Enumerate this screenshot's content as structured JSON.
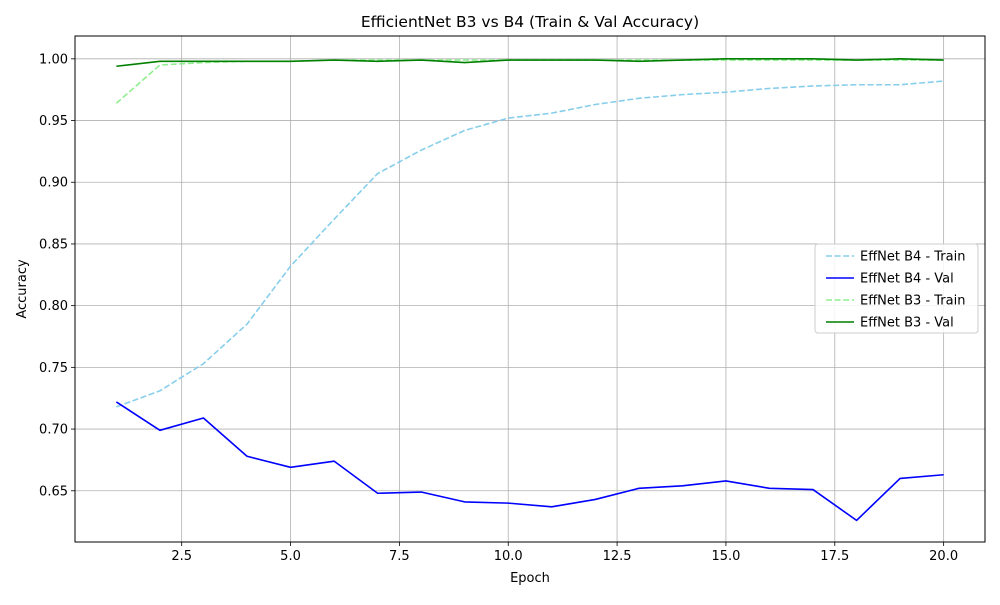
{
  "chart_data": {
    "type": "line",
    "title": "EfficientNet B3 vs B4 (Train & Val Accuracy)",
    "xlabel": "Epoch",
    "ylabel": "Accuracy",
    "xlim": [
      0.05,
      20.95
    ],
    "ylim": [
      0.6085,
      1.0185
    ],
    "xticks": [
      2.5,
      5.0,
      7.5,
      10.0,
      12.5,
      15.0,
      17.5,
      20.0
    ],
    "xtick_labels": [
      "2.5",
      "5.0",
      "7.5",
      "10.0",
      "12.5",
      "15.0",
      "17.5",
      "20.0"
    ],
    "yticks": [
      0.65,
      0.7,
      0.75,
      0.8,
      0.85,
      0.9,
      0.95,
      1.0
    ],
    "ytick_labels": [
      "0.65",
      "0.70",
      "0.75",
      "0.80",
      "0.85",
      "0.90",
      "0.95",
      "1.00"
    ],
    "grid": true,
    "legend_position": "center-right",
    "x": [
      1,
      2,
      3,
      4,
      5,
      6,
      7,
      8,
      9,
      10,
      11,
      12,
      13,
      14,
      15,
      16,
      17,
      18,
      19,
      20
    ],
    "series": [
      {
        "name": "EffNet B4 - Train",
        "color": "#87CEEB",
        "dashed": true,
        "values": [
          0.718,
          0.731,
          0.753,
          0.785,
          0.832,
          0.87,
          0.907,
          0.926,
          0.942,
          0.952,
          0.956,
          0.963,
          0.968,
          0.971,
          0.973,
          0.976,
          0.978,
          0.979,
          0.979,
          0.982
        ]
      },
      {
        "name": "EffNet B4 - Val",
        "color": "#0000FF",
        "dashed": false,
        "values": [
          0.722,
          0.699,
          0.709,
          0.678,
          0.669,
          0.674,
          0.648,
          0.649,
          0.641,
          0.64,
          0.637,
          0.643,
          0.652,
          0.654,
          0.658,
          0.652,
          0.651,
          0.626,
          0.66,
          0.663
        ]
      },
      {
        "name": "EffNet B3 - Train",
        "color": "#90EE90",
        "dashed": true,
        "values": [
          0.964,
          0.995,
          0.997,
          0.998,
          0.998,
          0.999,
          0.999,
          0.999,
          0.999,
          0.999,
          0.999,
          0.999,
          0.999,
          0.999,
          0.999,
          0.999,
          0.999,
          0.999,
          0.999,
          0.999
        ]
      },
      {
        "name": "EffNet B3 - Val",
        "color": "#008000",
        "dashed": false,
        "values": [
          0.994,
          0.998,
          0.998,
          0.998,
          0.998,
          0.999,
          0.998,
          0.999,
          0.997,
          0.999,
          0.999,
          0.999,
          0.998,
          0.999,
          1.0,
          1.0,
          1.0,
          0.999,
          1.0,
          0.999
        ]
      }
    ]
  }
}
